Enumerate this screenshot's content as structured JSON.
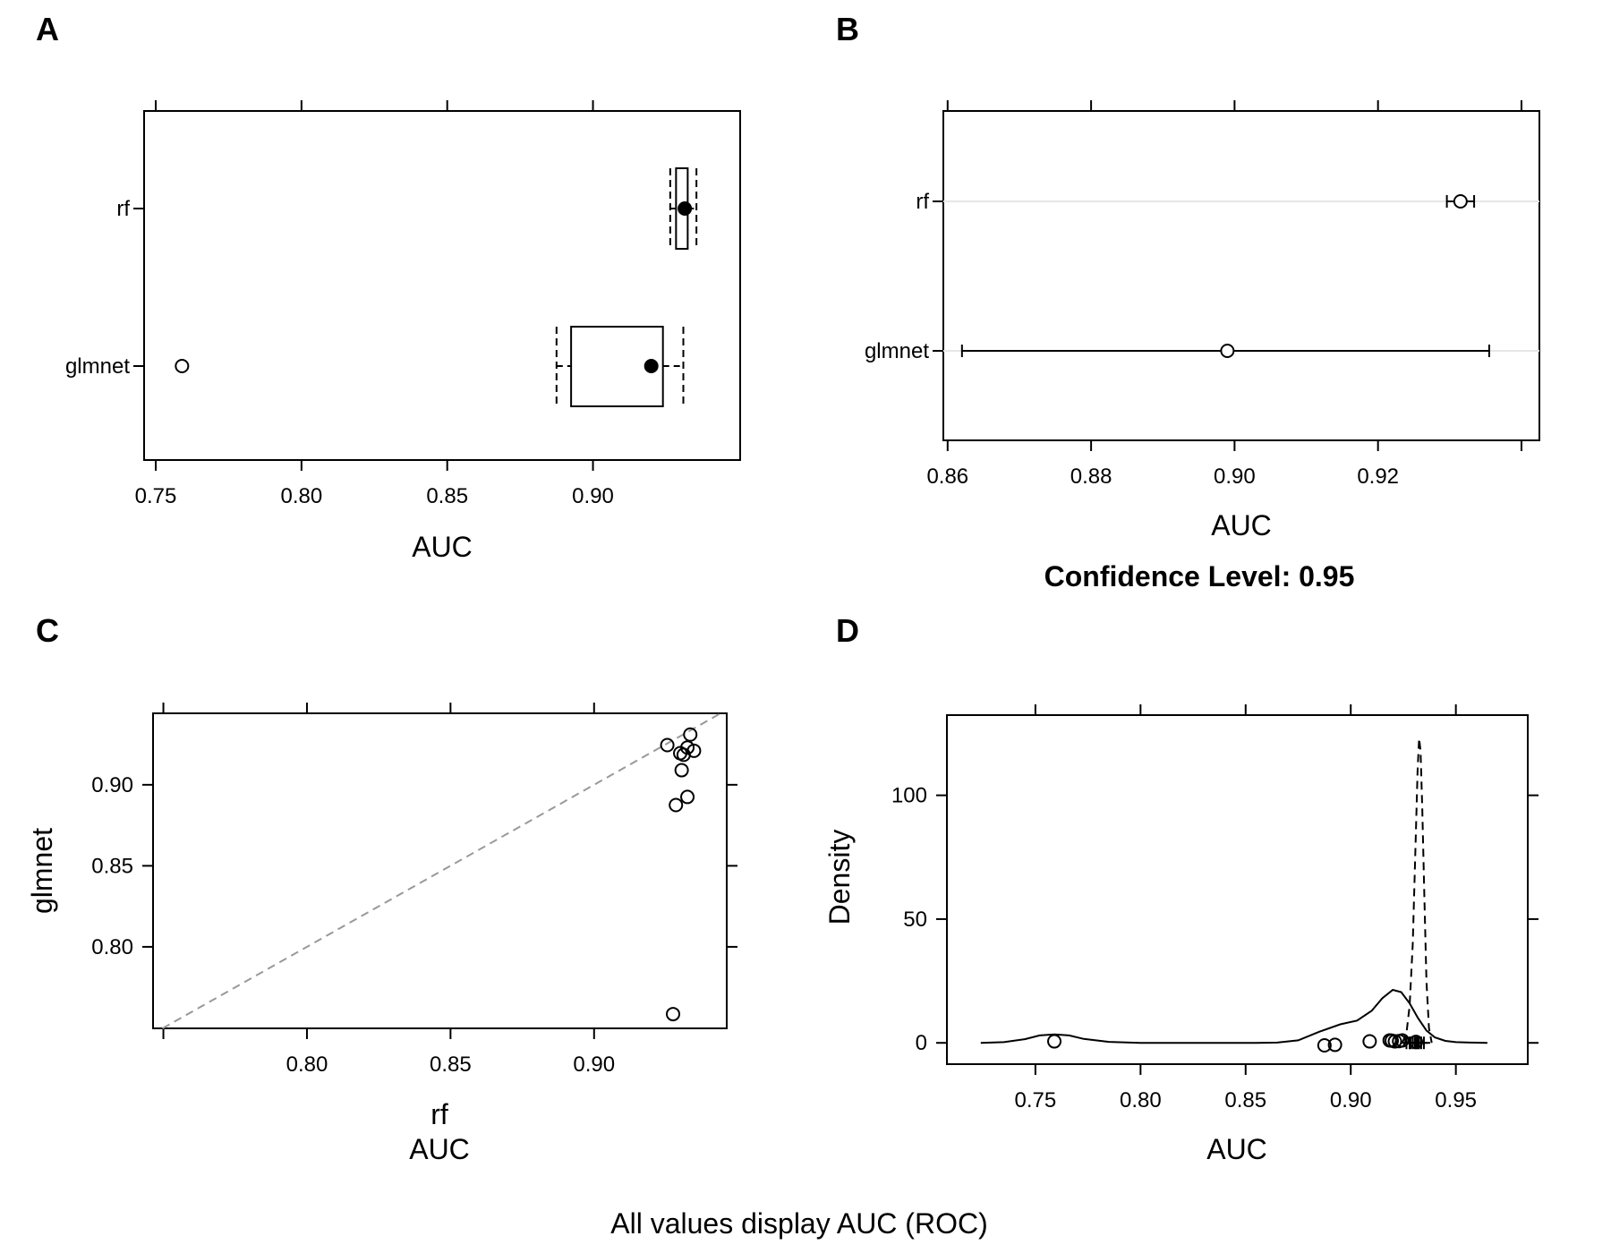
{
  "figure": {
    "caption": "All values display AUC (ROC)"
  },
  "chart_data": [
    {
      "panel": "A",
      "type": "box",
      "xlabel": "AUC",
      "xlim": [
        0.746,
        0.9505
      ],
      "x_ticks": [
        0.75,
        0.8,
        0.85,
        0.9
      ],
      "x_tick_labels": [
        "0.75",
        "0.80",
        "0.85",
        "0.90"
      ],
      "categories": [
        "rf",
        "glmnet"
      ],
      "boxes": [
        {
          "name": "rf",
          "whisker_low": 0.9265,
          "q1": 0.9285,
          "median": 0.9315,
          "q3": 0.9325,
          "whisker_high": 0.9355,
          "outliers": []
        },
        {
          "name": "glmnet",
          "whisker_low": 0.8875,
          "q1": 0.8925,
          "median": 0.92,
          "q3": 0.924,
          "whisker_high": 0.931,
          "outliers": [
            0.759
          ]
        }
      ]
    },
    {
      "panel": "B",
      "type": "dotplot",
      "xlabel": "AUC",
      "subtitle": "Confidence Level: 0.95",
      "xlim": [
        0.8594,
        0.9425
      ],
      "x_ticks": [
        0.86,
        0.88,
        0.9,
        0.92,
        0.94
      ],
      "x_tick_labels": [
        "0.86",
        "0.88",
        "0.90",
        "0.92",
        ""
      ],
      "categories": [
        "rf",
        "glmnet"
      ],
      "intervals": [
        {
          "name": "rf",
          "estimate": 0.9315,
          "lower": 0.9296,
          "upper": 0.9334
        },
        {
          "name": "glmnet",
          "estimate": 0.899,
          "lower": 0.862,
          "upper": 0.9355
        }
      ]
    },
    {
      "panel": "C",
      "type": "scatter",
      "xlabel": "rf",
      "xlabel2": "AUC",
      "ylabel": "glmnet",
      "xlim": [
        0.7464,
        0.9462
      ],
      "ylim": [
        0.7497,
        0.9441
      ],
      "x_ticks": [
        0.75,
        0.8,
        0.85,
        0.9
      ],
      "x_tick_labels": [
        "",
        "0.80",
        "0.85",
        "0.90"
      ],
      "y_ticks": [
        0.8,
        0.85,
        0.9
      ],
      "y_tick_labels": [
        "0.80",
        "0.85",
        "0.90"
      ],
      "diagonal": true,
      "points": [
        {
          "x": 0.9255,
          "y": 0.9245
        },
        {
          "x": 0.9335,
          "y": 0.931
        },
        {
          "x": 0.9325,
          "y": 0.923
        },
        {
          "x": 0.9348,
          "y": 0.921
        },
        {
          "x": 0.93,
          "y": 0.9195
        },
        {
          "x": 0.9312,
          "y": 0.9185
        },
        {
          "x": 0.9305,
          "y": 0.909
        },
        {
          "x": 0.9325,
          "y": 0.8925
        },
        {
          "x": 0.9285,
          "y": 0.8875
        },
        {
          "x": 0.9275,
          "y": 0.7585
        }
      ]
    },
    {
      "panel": "D",
      "type": "density",
      "xlabel": "AUC",
      "ylabel": "Density",
      "xlim": [
        0.7079,
        0.9842
      ],
      "ylim": [
        -8.6,
        132.4
      ],
      "x_ticks": [
        0.75,
        0.8,
        0.85,
        0.9,
        0.95
      ],
      "x_tick_labels": [
        "0.75",
        "0.80",
        "0.85",
        "0.90",
        "0.95"
      ],
      "y_ticks": [
        0,
        50,
        100
      ],
      "y_tick_labels": [
        "0",
        "50",
        "100"
      ],
      "series": [
        {
          "line": "solid",
          "x": [
            0.724,
            0.735,
            0.745,
            0.752,
            0.759,
            0.766,
            0.773,
            0.785,
            0.8,
            0.82,
            0.84,
            0.855,
            0.865,
            0.875,
            0.885,
            0.895,
            0.903,
            0.91,
            0.915,
            0.92,
            0.924,
            0.928,
            0.932,
            0.936,
            0.94,
            0.945,
            0.95,
            0.957,
            0.965
          ],
          "y": [
            0,
            0.3,
            1.5,
            3.0,
            3.4,
            3.0,
            1.6,
            0.4,
            0,
            0,
            0,
            0,
            0.1,
            1.0,
            4.5,
            7.5,
            9.0,
            13.0,
            18.0,
            21.4,
            20.5,
            16.0,
            10.0,
            5.0,
            2.2,
            0.8,
            0.3,
            0.1,
            0
          ]
        },
        {
          "line": "dashed",
          "x": [
            0.9245,
            0.9265,
            0.928,
            0.9295,
            0.931,
            0.9318,
            0.9325,
            0.9332,
            0.934,
            0.935,
            0.936,
            0.9372,
            0.9385
          ],
          "y": [
            0,
            4,
            15,
            40,
            85,
            110,
            123,
            118,
            95,
            60,
            25,
            6,
            0
          ]
        }
      ],
      "rug_open": [
        {
          "x": 0.759,
          "y": 0.6
        },
        {
          "x": 0.8875,
          "y": -1.0
        },
        {
          "x": 0.8925,
          "y": -0.8
        },
        {
          "x": 0.909,
          "y": 0.6
        },
        {
          "x": 0.9185,
          "y": 1.0
        },
        {
          "x": 0.9195,
          "y": 0.9
        },
        {
          "x": 0.921,
          "y": 0.6
        },
        {
          "x": 0.923,
          "y": 0.7
        },
        {
          "x": 0.9245,
          "y": 1.0
        },
        {
          "x": 0.931,
          "y": 0.4
        }
      ],
      "rug_plus": [
        0.9265,
        0.928,
        0.9285,
        0.9295,
        0.9305,
        0.931,
        0.9315,
        0.932,
        0.9325,
        0.9335,
        0.9348
      ]
    }
  ]
}
